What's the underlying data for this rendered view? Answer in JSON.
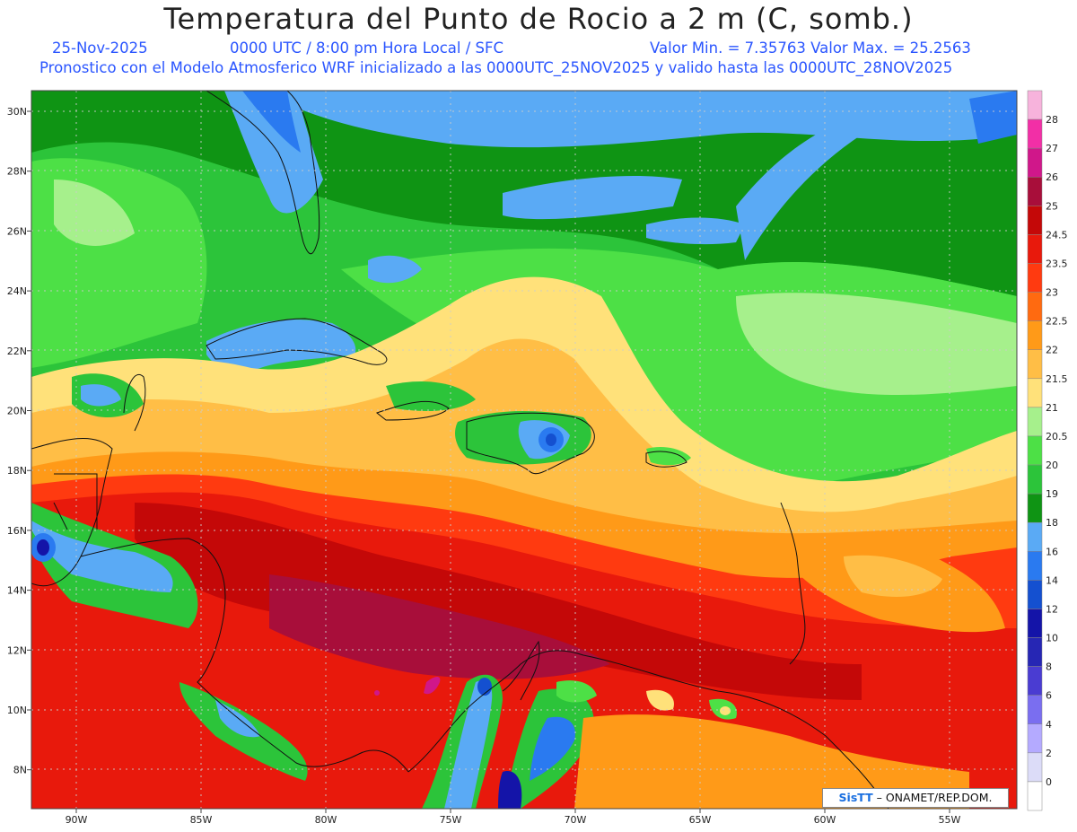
{
  "title": "Temperatura del Punto de Rocio a 2 m (C, somb.)",
  "date": "25-Nov-2025",
  "time_info": "0000 UTC / 8:00 pm Hora Local / SFC",
  "range_info": "Valor Min. = 7.35763  Valor Max. = 25.2563",
  "model_info": "Pronostico con el Modelo Atmosferico WRF inicializado a las 0000UTC_25NOV2025 y valido hasta las  0000UTC_28NOV2025",
  "credit": {
    "logo": "SisTT",
    "text": "ONAMET/REP.DOM."
  },
  "lat_labels": [
    "30N",
    "28N",
    "26N",
    "24N",
    "22N",
    "20N",
    "18N",
    "16N",
    "14N",
    "12N",
    "10N",
    "8N"
  ],
  "lon_labels": [
    "90W",
    "85W",
    "80W",
    "75W",
    "70W",
    "65W",
    "60W",
    "55W"
  ],
  "legend": [
    {
      "label": "28",
      "color": "#f7b3dc"
    },
    {
      "label": "27",
      "color": "#f22fa6"
    },
    {
      "label": "26",
      "color": "#d0178a"
    },
    {
      "label": "25",
      "color": "#a80e3a"
    },
    {
      "label": "24.5",
      "color": "#c40808"
    },
    {
      "label": "23.5",
      "color": "#e8190c"
    },
    {
      "label": "23",
      "color": "#ff3a10"
    },
    {
      "label": "22.5",
      "color": "#ff6a10"
    },
    {
      "label": "22",
      "color": "#ff9a18"
    },
    {
      "label": "21.5",
      "color": "#ffbe46"
    },
    {
      "label": "21",
      "color": "#ffe17a"
    },
    {
      "label": "20.5",
      "color": "#a6f08c"
    },
    {
      "label": "20",
      "color": "#4de046"
    },
    {
      "label": "19",
      "color": "#2cc43a"
    },
    {
      "label": "18",
      "color": "#0f9414"
    },
    {
      "label": "16",
      "color": "#5aaaf5"
    },
    {
      "label": "14",
      "color": "#2a7af0"
    },
    {
      "label": "12",
      "color": "#1450d0"
    },
    {
      "label": "10",
      "color": "#1414a8"
    },
    {
      "label": "8",
      "color": "#2626b4"
    },
    {
      "label": "6",
      "color": "#4a3cd2"
    },
    {
      "label": "4",
      "color": "#7a6ef0"
    },
    {
      "label": "2",
      "color": "#b4aaff"
    },
    {
      "label": "0",
      "color": "#dcdcf8"
    },
    {
      "label": "",
      "color": "#ffffff"
    }
  ]
}
